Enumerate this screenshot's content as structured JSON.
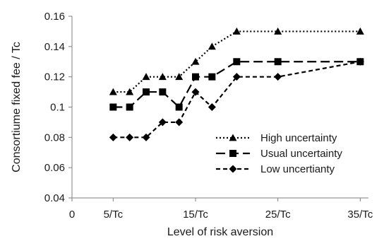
{
  "chart_data": {
    "type": "line",
    "xlabel": "Level of risk aversion",
    "ylabel": "Consortiume fixed fee / Tc",
    "xlim": [
      0,
      36
    ],
    "ylim": [
      0.04,
      0.16
    ],
    "x_ticks": [
      {
        "value": 0,
        "label": "0"
      },
      {
        "value": 5,
        "label": "5/Tc"
      },
      {
        "value": 15,
        "label": "15/Tc"
      },
      {
        "value": 25,
        "label": "25/Tc"
      },
      {
        "value": 35,
        "label": "35/Tc"
      }
    ],
    "y_ticks": [
      {
        "value": 0.04,
        "label": "0.04"
      },
      {
        "value": 0.06,
        "label": "0.06"
      },
      {
        "value": 0.08,
        "label": "0.08"
      },
      {
        "value": 0.1,
        "label": "0.1"
      },
      {
        "value": 0.12,
        "label": "0.12"
      },
      {
        "value": 0.14,
        "label": "0.14"
      },
      {
        "value": 0.16,
        "label": "0.16"
      }
    ],
    "grid": false,
    "legend_position": "bottom-right",
    "series": [
      {
        "name": "High uncertainty",
        "marker": "triangle",
        "dash": "dotted",
        "color": "#000000",
        "x": [
          5,
          7,
          9,
          11,
          13,
          15,
          17,
          20,
          25,
          35
        ],
        "y": [
          0.11,
          0.11,
          0.12,
          0.12,
          0.12,
          0.13,
          0.14,
          0.15,
          0.15,
          0.15
        ]
      },
      {
        "name": "Usual uncertainty",
        "marker": "square",
        "dash": "long-dash",
        "color": "#000000",
        "x": [
          5,
          7,
          9,
          11,
          13,
          15,
          17,
          20,
          25,
          35
        ],
        "y": [
          0.1,
          0.1,
          0.11,
          0.11,
          0.1,
          0.12,
          0.12,
          0.13,
          0.13,
          0.13
        ]
      },
      {
        "name": "Low uncertianty",
        "marker": "diamond",
        "dash": "short-dash",
        "color": "#000000",
        "x": [
          5,
          7,
          9,
          11,
          13,
          15,
          17,
          20,
          25,
          35
        ],
        "y": [
          0.08,
          0.08,
          0.08,
          0.09,
          0.09,
          0.11,
          0.1,
          0.12,
          0.12,
          0.13
        ]
      }
    ]
  }
}
